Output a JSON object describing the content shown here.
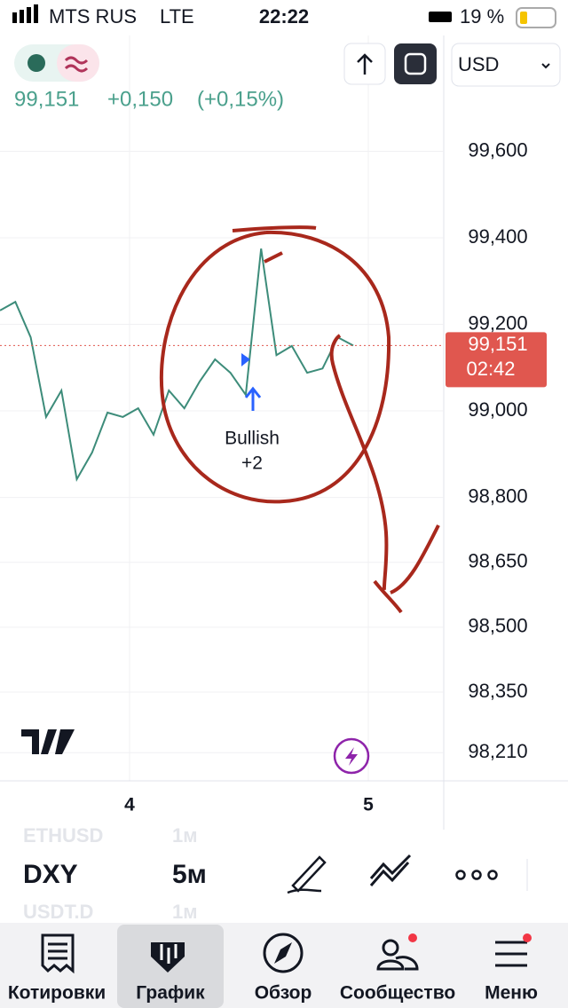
{
  "status_bar": {
    "carrier": "MTS RUS",
    "network": "LTE",
    "time": "22:22",
    "battery": "19 %"
  },
  "header": {
    "currency": "USD",
    "price": "99,151",
    "change": "+0,150",
    "change_percent": "(+0,15%)"
  },
  "chart": {
    "ylim": [
      98.145,
      99.683
    ],
    "yticks": [
      {
        "value": 99.6,
        "label": "99,600"
      },
      {
        "value": 99.4,
        "label": "99,400"
      },
      {
        "value": 99.2,
        "label": "99,200"
      },
      {
        "value": 99.0,
        "label": "99,000"
      },
      {
        "value": 98.8,
        "label": "98,800"
      },
      {
        "value": 98.65,
        "label": "98,650"
      },
      {
        "value": 98.5,
        "label": "98,500"
      },
      {
        "value": 98.35,
        "label": "98,350"
      },
      {
        "value": 98.21,
        "label": "98,210"
      }
    ],
    "last_price": {
      "value": 99.151,
      "label": "99,151"
    },
    "countdown": "02:42",
    "price_line": [
      99.232,
      99.252,
      99.17,
      98.986,
      99.047,
      98.842,
      98.904,
      98.996,
      98.986,
      99.006,
      98.945,
      99.047,
      99.006,
      99.068,
      99.119,
      99.088,
      99.037,
      99.375,
      99.129,
      99.15,
      99.088,
      99.098,
      99.17,
      99.151
    ],
    "time_labels": [
      "4",
      "5"
    ],
    "annotation": {
      "label": "Bullish",
      "count": "+2"
    }
  },
  "toolbar": {
    "symbol": "DXY",
    "interval": "5м",
    "faded_above": {
      "symbol": "ETHUSD",
      "interval": "1м"
    },
    "faded_below": {
      "symbol": "USDT.D",
      "interval": "1м"
    }
  },
  "nav": [
    "Котировки",
    "График",
    "Обзор",
    "Сообщество",
    "Меню"
  ]
}
